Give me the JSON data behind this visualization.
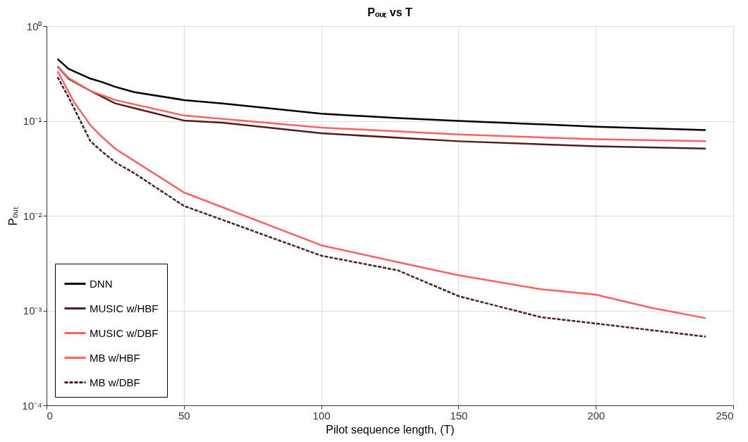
{
  "chart_data": {
    "type": "line",
    "title": "Pₒᵤₜ vs T",
    "xlabel": "Pilot sequence length, (T)",
    "ylabel": "Pₒᵤₜ",
    "log": "y",
    "grid": true,
    "legend": "bottom left",
    "line_style": "solid",
    "marker": "none",
    "xlim": [
      0,
      250
    ],
    "xticks": [
      0,
      50,
      100,
      150,
      200,
      250
    ],
    "ylim": [
      0.0001,
      1
    ],
    "yticks": [
      {
        "value": 0.0001,
        "label": "10⁻⁴"
      },
      {
        "value": 0.001,
        "label": "10⁻³"
      },
      {
        "value": 0.01,
        "label": "10⁻²"
      },
      {
        "value": 0.1,
        "label": "10⁻¹"
      },
      {
        "value": 1,
        "label": "10⁰"
      }
    ],
    "series": [
      {
        "name": "DNN",
        "color": "#000000",
        "x": [
          4,
          8,
          16,
          20,
          25,
          32,
          50,
          64,
          100,
          128,
          150,
          180,
          200,
          240
        ],
        "values": [
          0.45,
          0.354,
          0.279,
          0.258,
          0.229,
          0.201,
          0.166,
          0.153,
          0.119,
          0.107,
          0.1,
          0.092,
          0.087,
          0.08
        ]
      },
      {
        "name": "MUSIC w/HBF",
        "color": "#4d1f1f",
        "x": [
          4,
          8,
          16,
          25,
          32,
          50,
          64,
          100,
          150,
          200,
          240
        ],
        "values": [
          0.376,
          0.279,
          0.207,
          0.153,
          0.136,
          0.101,
          0.096,
          0.074,
          0.061,
          0.054,
          0.051
        ]
      },
      {
        "name": "MUSIC w/DBF",
        "color": "#ff6161",
        "x": [
          4,
          8,
          16,
          25,
          50,
          100,
          150,
          200,
          240
        ],
        "values": [
          0.376,
          0.284,
          0.207,
          0.166,
          0.114,
          0.085,
          0.072,
          0.064,
          0.061
        ]
      },
      {
        "name": "MB w/HBF",
        "color": "#ff6161",
        "x": [
          4,
          10,
          16,
          20,
          25,
          32,
          50,
          100,
          128,
          150,
          180,
          200,
          220,
          240
        ],
        "values": [
          0.334,
          0.158,
          0.0897,
          0.0686,
          0.0509,
          0.0378,
          0.0176,
          0.00488,
          0.00323,
          0.00235,
          0.00168,
          0.00147,
          0.00107,
          0.00083
        ]
      },
      {
        "name": "MB w/DBF",
        "color": "#4d1f1f",
        "line_style": "dashed",
        "x": [
          4,
          8,
          16,
          20,
          25,
          32,
          50,
          100,
          128,
          150,
          180,
          200,
          240
        ],
        "values": [
          0.29,
          0.178,
          0.061,
          0.048,
          0.0366,
          0.028,
          0.0127,
          0.00379,
          0.00265,
          0.00142,
          0.00085,
          0.00073,
          0.00053
        ]
      }
    ]
  }
}
